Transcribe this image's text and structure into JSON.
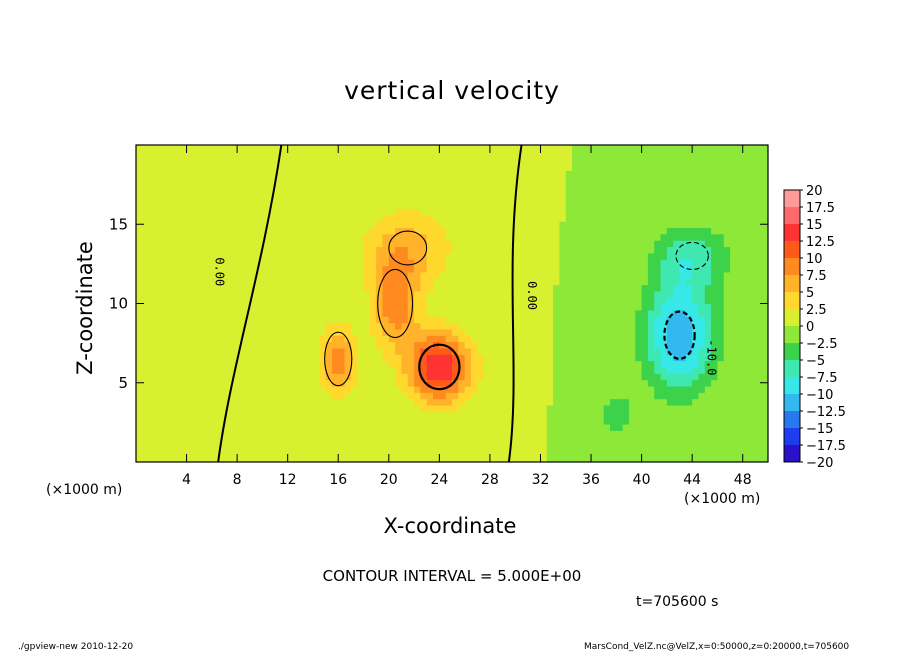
{
  "chart_data": {
    "type": "heatmap",
    "title": "vertical velocity",
    "xlabel": "X-coordinate",
    "ylabel": "Z-coordinate",
    "x_unit_label": "(×1000 m)",
    "xlim": [
      0,
      50
    ],
    "ylim": [
      0,
      20
    ],
    "x_ticks": [
      "4",
      "8",
      "12",
      "16",
      "20",
      "24",
      "28",
      "32",
      "36",
      "40",
      "44",
      "48"
    ],
    "y_ticks": [
      "5",
      "10",
      "15"
    ],
    "colorbar_levels": [
      "20",
      "17.5",
      "15",
      "12.5",
      "10",
      "7.5",
      "5",
      "2.5",
      "0",
      "−2.5",
      "−5",
      "−7.5",
      "−10",
      "−12.5",
      "−15",
      "−17.5",
      "−20"
    ],
    "colorbar_colors": [
      "#ff9a9a",
      "#ff6a6a",
      "#ff3333",
      "#ff5a1a",
      "#ff8a1f",
      "#ffb22a",
      "#ffd82e",
      "#d8f030",
      "#8ee838",
      "#3cd24a",
      "#3ee8b0",
      "#36e8e8",
      "#34b8f0",
      "#2a78f0",
      "#1e3cf0",
      "#2a10c8",
      "#6a14b8"
    ],
    "contour_interval": "CONTOUR INTERVAL = 5.000E+00",
    "contour_labels": [
      "0.00",
      "0.00",
      "-10.0"
    ],
    "time_label": "t=705600 s",
    "features": [
      {
        "x": 24,
        "z": 6,
        "w": 15.0,
        "sx": 2.5,
        "sz": 2.2
      },
      {
        "x": 20.5,
        "z": 10,
        "w": 9.0,
        "sx": 1.8,
        "sz": 2.8
      },
      {
        "x": 16,
        "z": 6.5,
        "w": 9.0,
        "sx": 1.4,
        "sz": 2.2
      },
      {
        "x": 21.5,
        "z": 13.5,
        "w": 6.0,
        "sx": 3.5,
        "sz": 2.5
      },
      {
        "x": 43,
        "z": 8,
        "w": -12.0,
        "sx": 2.8,
        "sz": 3.5
      },
      {
        "x": 44,
        "z": 13,
        "w": -6.0,
        "sx": 3.0,
        "sz": 2.0
      },
      {
        "x": 38,
        "z": 3,
        "w": -4.0,
        "sx": 1.5,
        "sz": 1.5
      }
    ]
  },
  "footer": {
    "left": "./gpview-new  2010-12-20",
    "right": "MarsCond_VelZ.nc@VelZ,x=0:50000,z=0:20000,t=705600"
  }
}
